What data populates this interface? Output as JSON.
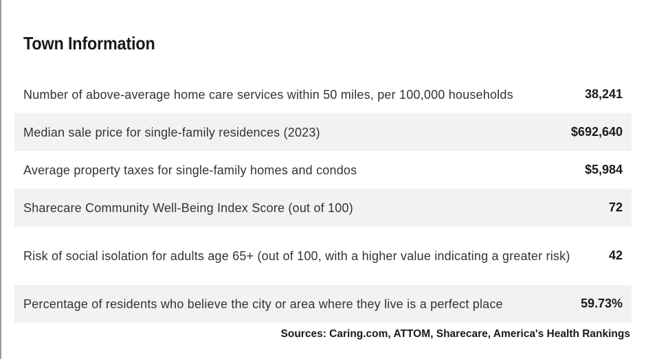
{
  "title": "Town Information",
  "rows": [
    {
      "label": "Number of above-average home care services within 50 miles, per 100,000 households",
      "value": "38,241"
    },
    {
      "label": "Median sale price for single-family residences (2023)",
      "value": "$692,640"
    },
    {
      "label": "Average property taxes for single-family homes and condos",
      "value": "$5,984"
    },
    {
      "label": "Sharecare Community Well-Being Index Score (out of 100)",
      "value": "72"
    },
    {
      "label": "Risk of social isolation for adults age 65+ (out of 100, with a higher value indicating a greater risk)",
      "value": "42"
    },
    {
      "label": "Percentage of residents who believe the city or area where they live is a perfect place",
      "value": "59.73%"
    }
  ],
  "sources": "Sources: Caring.com, ATTOM, Sharecare, America's Health Rankings",
  "colors": {
    "alt_row": "#f2f2f2",
    "text": "#333333",
    "border": "#9a9a9a"
  }
}
